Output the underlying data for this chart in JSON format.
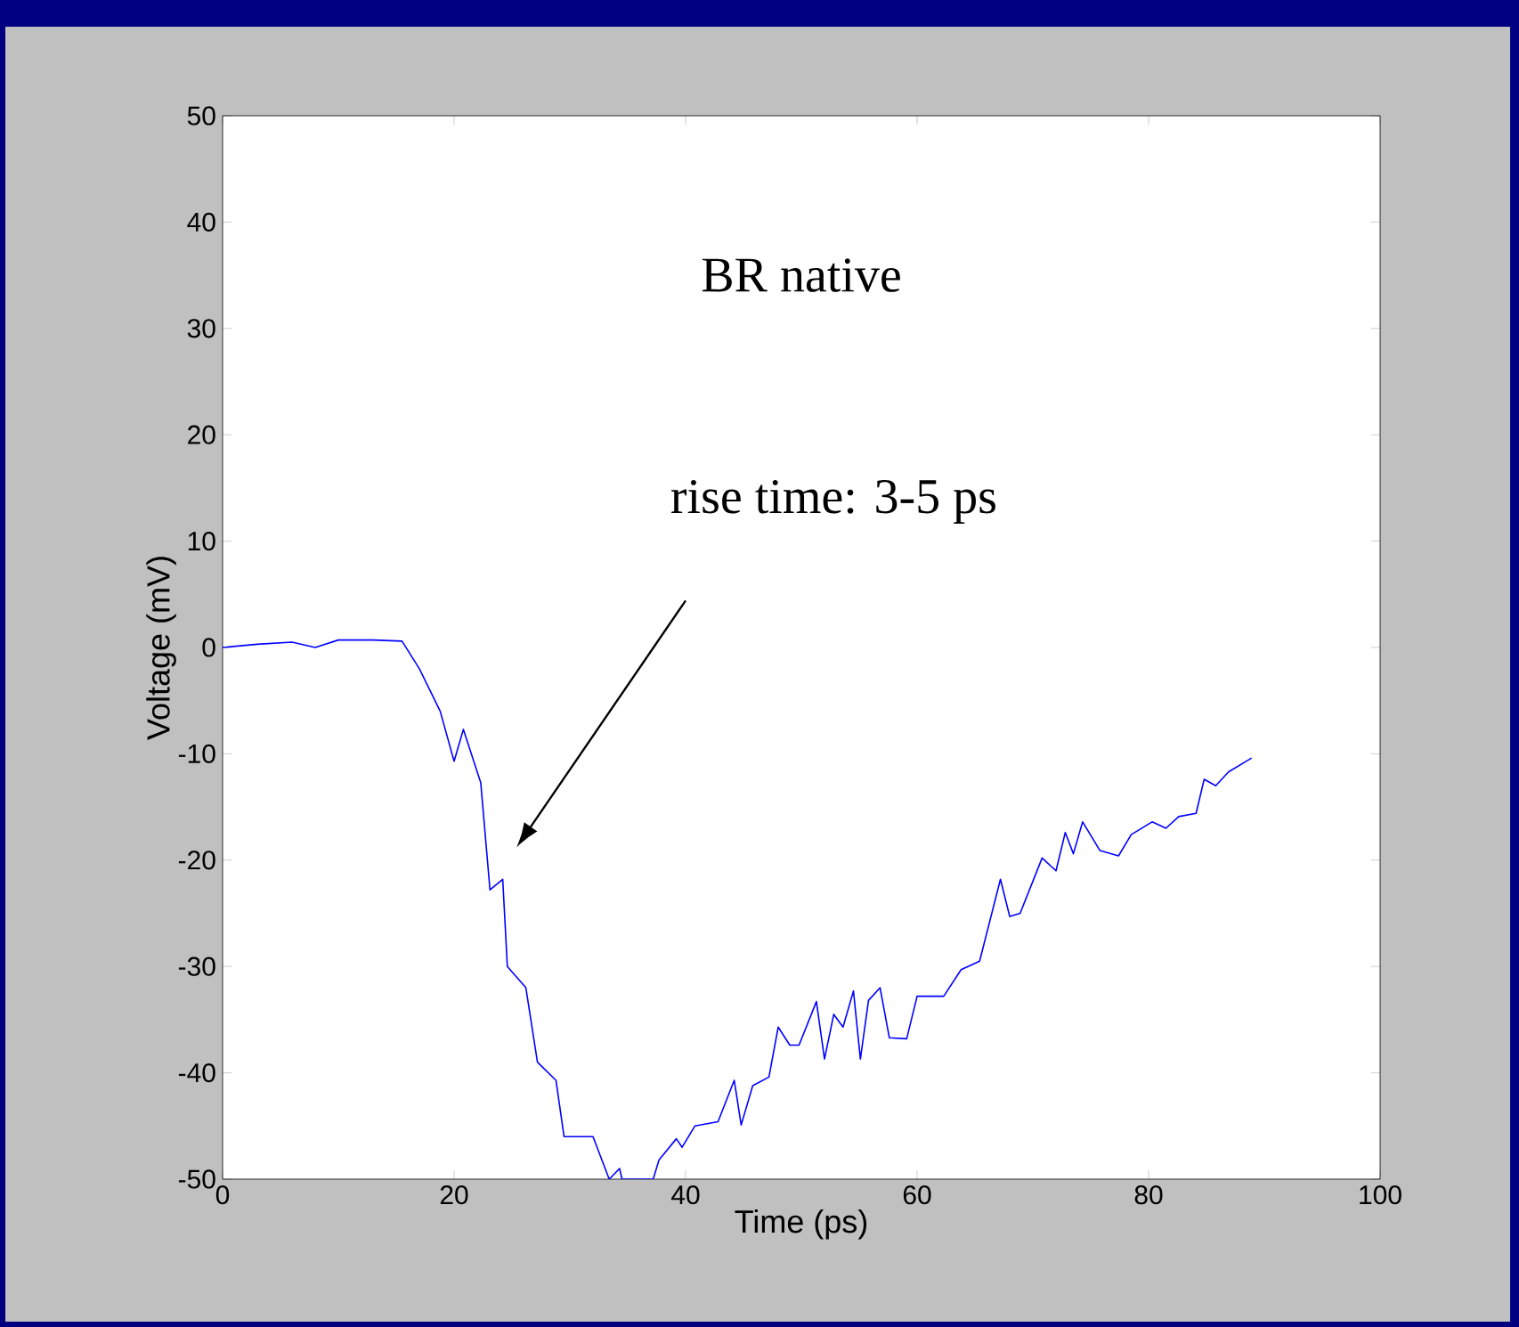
{
  "chart_data": {
    "type": "line",
    "title": "BR native",
    "xlabel": "Time (ps)",
    "ylabel": "Voltage (mV)",
    "xlim": [
      0,
      100
    ],
    "ylim": [
      -50,
      50
    ],
    "xticks": [
      0,
      20,
      40,
      60,
      80,
      100
    ],
    "yticks": [
      -50,
      -40,
      -30,
      -20,
      -10,
      0,
      10,
      20,
      30,
      40,
      50
    ],
    "grid": false,
    "line_style": "solid",
    "marker": "none",
    "annotations": [
      "rise time: 3-5 ps"
    ],
    "series": [
      {
        "color": "#0000ff",
        "x": [
          0,
          3,
          6,
          8,
          10,
          13,
          15.5,
          17,
          18.8,
          20,
          20.8,
          22.3,
          23.1,
          24.2,
          24.6,
          26.2,
          27.2,
          28.8,
          29.5,
          32,
          33.4,
          34.3,
          34.5,
          37.2,
          37.7,
          39.2,
          39.7,
          40.8,
          42.8,
          44.2,
          44.8,
          45.8,
          47.2,
          48,
          49,
          49.8,
          51.3,
          52,
          52.8,
          53.6,
          54.5,
          55.1,
          55.8,
          56.8,
          57.6,
          59.1,
          60,
          62.3,
          63.8,
          65.4,
          67.2,
          68,
          68.9,
          70.8,
          72,
          72.8,
          73.5,
          74.3,
          75.8,
          77.4,
          78.5,
          80.3,
          81.5,
          82.6,
          84.1,
          84.8,
          85.8,
          86.9,
          88.9
        ],
        "values": [
          0,
          0.3,
          0.5,
          0,
          0.7,
          0.7,
          0.6,
          -2,
          -6,
          -10.7,
          -7.7,
          -12.7,
          -22.8,
          -21.8,
          -30,
          -32,
          -39,
          -40.7,
          -46,
          -46,
          -50,
          -49,
          -50,
          -50,
          -48.2,
          -46.2,
          -47,
          -45,
          -44.6,
          -40.7,
          -44.9,
          -41.2,
          -40.4,
          -35.7,
          -37.4,
          -37.4,
          -33.3,
          -38.7,
          -34.5,
          -35.7,
          -32.3,
          -38.7,
          -33.2,
          -32,
          -36.7,
          -36.8,
          -32.8,
          -32.8,
          -30.3,
          -29.5,
          -21.8,
          -25.3,
          -25,
          -19.8,
          -21,
          -17.4,
          -19.4,
          -16.4,
          -19.1,
          -19.6,
          -17.6,
          -16.4,
          -17,
          -15.9,
          -15.6,
          -12.4,
          -13,
          -11.7,
          -10.4
        ]
      }
    ]
  }
}
